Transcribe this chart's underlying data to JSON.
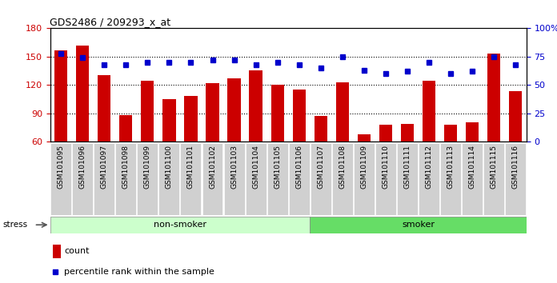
{
  "title": "GDS2486 / 209293_x_at",
  "categories": [
    "GSM101095",
    "GSM101096",
    "GSM101097",
    "GSM101098",
    "GSM101099",
    "GSM101100",
    "GSM101101",
    "GSM101102",
    "GSM101103",
    "GSM101104",
    "GSM101105",
    "GSM101106",
    "GSM101107",
    "GSM101108",
    "GSM101109",
    "GSM101110",
    "GSM101111",
    "GSM101112",
    "GSM101113",
    "GSM101114",
    "GSM101115",
    "GSM101116"
  ],
  "bar_values": [
    157,
    162,
    130,
    88,
    124,
    105,
    108,
    122,
    127,
    135,
    120,
    115,
    87,
    123,
    68,
    78,
    79,
    124,
    78,
    80,
    153,
    113
  ],
  "dot_values": [
    78,
    74,
    68,
    68,
    70,
    70,
    70,
    72,
    72,
    68,
    70,
    68,
    65,
    75,
    63,
    60,
    62,
    70,
    60,
    62,
    75,
    68
  ],
  "bar_color": "#cc0000",
  "dot_color": "#0000cc",
  "ylim_left": [
    60,
    180
  ],
  "ylim_right": [
    0,
    100
  ],
  "yticks_left": [
    60,
    90,
    120,
    150,
    180
  ],
  "yticks_right": [
    0,
    25,
    50,
    75,
    100
  ],
  "yticklabels_right": [
    "0",
    "25",
    "50",
    "75",
    "100%"
  ],
  "group1_label": "non-smoker",
  "group2_label": "smoker",
  "group1_count": 12,
  "group1_color": "#ccffcc",
  "group2_color": "#66dd66",
  "stress_label": "stress",
  "legend_count": "count",
  "legend_percentile": "percentile rank within the sample",
  "bar_width": 0.6
}
